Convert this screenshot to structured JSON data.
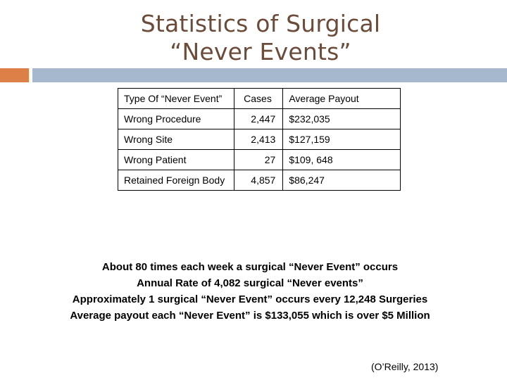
{
  "title": {
    "line1": "Statistics of Surgical",
    "line2": "“Never Events”"
  },
  "colors": {
    "title": "#6b4b3a",
    "accent_orange": "#dd8047",
    "accent_blue": "#a6b8cd"
  },
  "table": {
    "headers": [
      "Type Of “Never Event”",
      "Cases",
      "Average Payout"
    ],
    "rows": [
      [
        "Wrong Procedure",
        "2,447",
        "$232,035"
      ],
      [
        "Wrong Site",
        "2,413",
        "$127,159"
      ],
      [
        "Wrong Patient",
        "27",
        "$109, 648"
      ],
      [
        "Retained Foreign Body",
        "4,857",
        "$86,247"
      ]
    ]
  },
  "stats": [
    "About 80 times each week a surgical “Never Event” occurs",
    "Annual Rate of 4,082 surgical “Never events”",
    "Approximately 1 surgical “Never Event” occurs every 12,248 Surgeries",
    "Average payout each “Never Event” is $133,055 which is over $5 Million"
  ],
  "citation": "(O’Reilly, 2013)"
}
